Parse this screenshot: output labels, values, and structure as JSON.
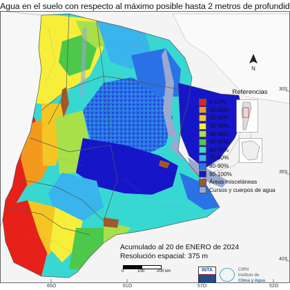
{
  "title": "Agua en el suelo con respecto al máximo posible hasta 2 metros de profundidad",
  "legend": {
    "title": "Referencias",
    "items": [
      {
        "label": "0-10%",
        "color": "#e8201a"
      },
      {
        "label": "10-20%",
        "color": "#f39a1e"
      },
      {
        "label": "20-30%",
        "color": "#f5c623"
      },
      {
        "label": "30-40%",
        "color": "#f7ee3a"
      },
      {
        "label": "40-50%",
        "color": "#a8e04a"
      },
      {
        "label": "50-60%",
        "color": "#4cc84b"
      },
      {
        "label": "60-70%",
        "color": "#37d8d2"
      },
      {
        "label": "70-80%",
        "color": "#3ab4ec"
      },
      {
        "label": "80-90%",
        "color": "#2a72e6"
      },
      {
        "label": "90-100%",
        "color": "#1616c8"
      },
      {
        "label": "Áreas misceláneas",
        "color": "#a4582a"
      },
      {
        "label": "Cursos y cuerpos de agua",
        "color": "#9aa9cf"
      }
    ]
  },
  "latitude_labels": [
    "30S",
    "35S",
    "40S"
  ],
  "longitude_labels": [
    "65O",
    "61O",
    "57O",
    "52O"
  ],
  "info": {
    "accumulated": "Acumulado al 20 de ENERO de 2024",
    "resolution": "Resolución espacial: 375 m"
  },
  "scale": {
    "ticks": [
      "0",
      "100",
      "200"
    ],
    "unit": "km"
  },
  "north_label": "N",
  "logos": {
    "inta": "INTA",
    "cirn": "CIRN",
    "cirn_sub1": "Instituto de",
    "cirn_sub2": "Clima y Agua"
  }
}
